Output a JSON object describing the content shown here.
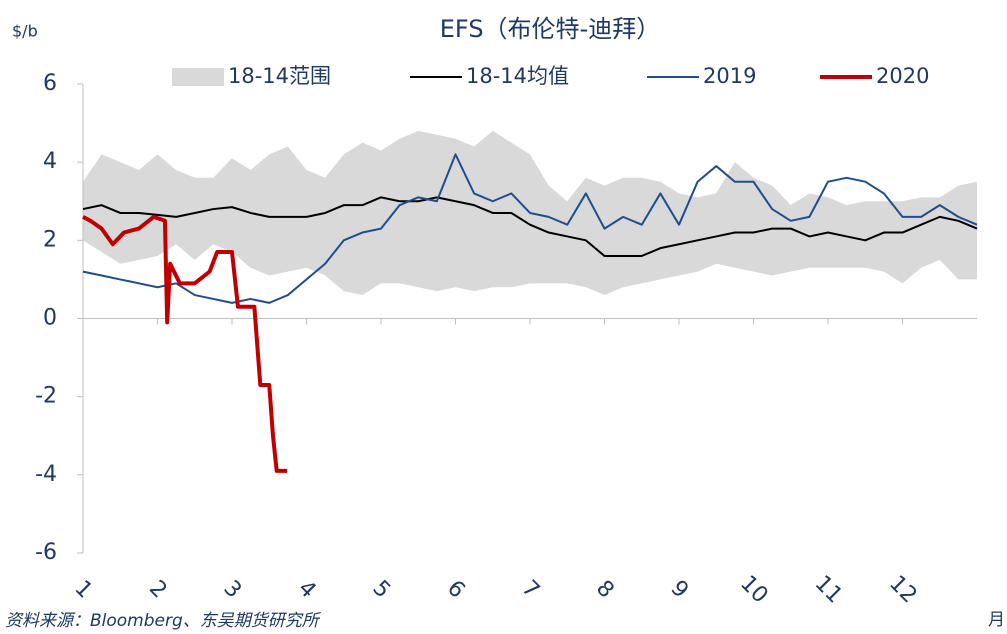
{
  "chart_data": {
    "type": "line",
    "title": "EFS（布伦特-迪拜）",
    "y_unit": "$/b",
    "x_label": "月",
    "source": "资料来源：Bloomberg、东吴期货研究所",
    "xlim": [
      1,
      13
    ],
    "xticks": [
      1,
      2,
      3,
      4,
      5,
      6,
      7,
      8,
      9,
      10,
      11,
      12
    ],
    "ylim": [
      -6,
      6
    ],
    "yticks": [
      -6,
      -4,
      -2,
      0,
      2,
      4,
      6
    ],
    "x": [
      1,
      1.25,
      1.5,
      1.75,
      2,
      2.25,
      2.5,
      2.75,
      3,
      3.25,
      3.5,
      3.75,
      4,
      4.25,
      4.5,
      4.75,
      5,
      5.25,
      5.5,
      5.75,
      6,
      6.25,
      6.5,
      6.75,
      7,
      7.25,
      7.5,
      7.75,
      8,
      8.25,
      8.5,
      8.75,
      9,
      9.25,
      9.5,
      9.75,
      10,
      10.25,
      10.5,
      10.75,
      11,
      11.25,
      11.5,
      11.75,
      12,
      12.25,
      12.5,
      12.75,
      13
    ],
    "series": [
      {
        "name": "18-14范围",
        "type": "range",
        "color": "#d9d9d9",
        "values": [
          3.5,
          4.2,
          4.0,
          3.8,
          4.2,
          3.8,
          3.6,
          3.6,
          4.1,
          3.8,
          4.2,
          4.4,
          3.8,
          3.6,
          4.2,
          4.5,
          4.3,
          4.6,
          4.8,
          4.7,
          4.6,
          4.4,
          4.8,
          4.5,
          4.2,
          3.4,
          3.0,
          3.6,
          3.4,
          3.6,
          3.6,
          3.5,
          3.2,
          3.1,
          3.2,
          4.0,
          3.6,
          3.4,
          2.9,
          3.2,
          3.1,
          2.9,
          3.0,
          3.0,
          3.0,
          3.1,
          3.1,
          3.4,
          3.5
        ],
        "low": [
          2.0,
          1.7,
          1.4,
          1.5,
          1.6,
          1.9,
          1.5,
          1.9,
          1.7,
          1.3,
          1.1,
          1.2,
          1.3,
          1.1,
          0.7,
          0.6,
          0.9,
          0.9,
          0.8,
          0.7,
          0.8,
          0.7,
          0.8,
          0.8,
          0.9,
          0.9,
          0.9,
          0.8,
          0.6,
          0.8,
          0.9,
          1.0,
          1.1,
          1.2,
          1.4,
          1.3,
          1.2,
          1.1,
          1.2,
          1.3,
          1.3,
          1.3,
          1.3,
          1.2,
          0.9,
          1.3,
          1.5,
          1.0,
          1.0
        ]
      },
      {
        "name": "18-14均值",
        "color": "#000000",
        "values": [
          2.8,
          2.9,
          2.7,
          2.7,
          2.65,
          2.6,
          2.7,
          2.8,
          2.85,
          2.7,
          2.6,
          2.6,
          2.6,
          2.7,
          2.9,
          2.9,
          3.1,
          3.0,
          3.0,
          3.1,
          3.0,
          2.9,
          2.7,
          2.7,
          2.4,
          2.2,
          2.1,
          2.0,
          1.6,
          1.6,
          1.6,
          1.8,
          1.9,
          2.0,
          2.1,
          2.2,
          2.2,
          2.3,
          2.3,
          2.1,
          2.2,
          2.1,
          2.0,
          2.2,
          2.2,
          2.4,
          2.6,
          2.5,
          2.3
        ]
      },
      {
        "name": "2019",
        "color": "#1f4e8c",
        "values": [
          1.2,
          1.1,
          1.0,
          0.9,
          0.8,
          0.9,
          0.6,
          0.5,
          0.4,
          0.5,
          0.4,
          0.6,
          1.0,
          1.4,
          2.0,
          2.2,
          2.3,
          2.9,
          3.1,
          3.0,
          4.2,
          3.2,
          3.0,
          3.2,
          2.7,
          2.6,
          2.4,
          3.2,
          2.3,
          2.6,
          2.4,
          3.2,
          2.4,
          3.5,
          3.9,
          3.5,
          3.5,
          2.8,
          2.5,
          2.6,
          3.5,
          3.6,
          3.5,
          3.2,
          2.6,
          2.6,
          2.9,
          2.6,
          2.4
        ]
      },
      {
        "name": "2020",
        "color": "#c00000",
        "x": [
          1,
          1.1,
          1.25,
          1.4,
          1.55,
          1.75,
          1.95,
          2.1,
          2.13,
          2.17,
          2.3,
          2.5,
          2.7,
          2.8,
          3.0,
          3.08,
          3.3,
          3.38,
          3.42,
          3.5,
          3.55,
          3.6,
          3.74
        ],
        "values": [
          2.6,
          2.5,
          2.3,
          1.9,
          2.2,
          2.3,
          2.6,
          2.5,
          -0.1,
          1.4,
          0.9,
          0.9,
          1.2,
          1.7,
          1.7,
          0.3,
          0.3,
          -1.7,
          -1.7,
          -1.7,
          -3.0,
          -3.9,
          -3.9
        ]
      }
    ]
  }
}
